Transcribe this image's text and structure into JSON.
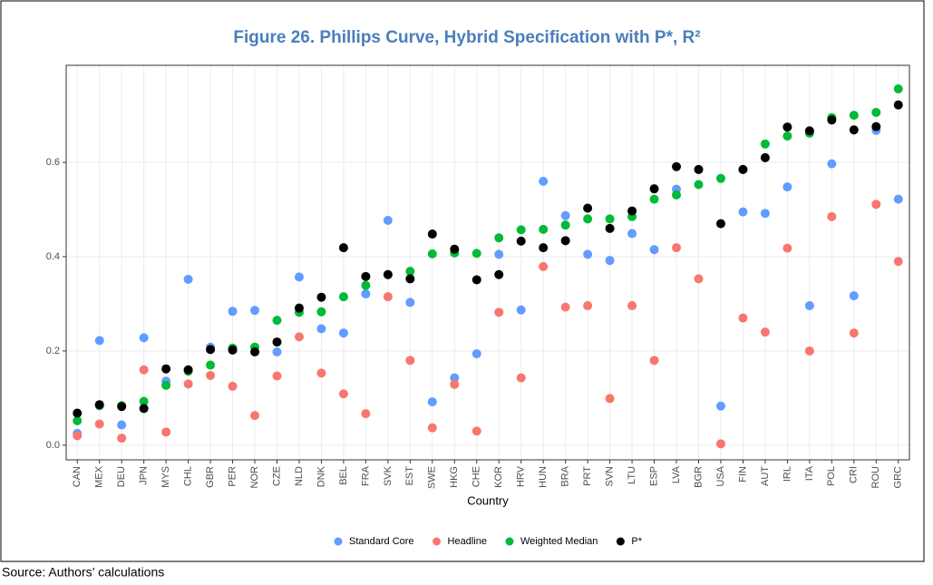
{
  "chart_data": {
    "type": "scatter",
    "title": "Figure 26. Phillips Curve, Hybrid Specification with P*, R²",
    "x_label": "Country",
    "source": "Source: Authors’ calculations",
    "categories": [
      "CAN",
      "MEX",
      "DEU",
      "JPN",
      "MYS",
      "CHL",
      "GBR",
      "PER",
      "NOR",
      "CZE",
      "NLD",
      "DNK",
      "BEL",
      "FRA",
      "SVK",
      "EST",
      "SWE",
      "HKG",
      "CHE",
      "KOR",
      "HRV",
      "HUN",
      "BRA",
      "PRT",
      "SVN",
      "LTU",
      "ESP",
      "LVA",
      "BGR",
      "USA",
      "FIN",
      "AUT",
      "IRL",
      "ITA",
      "POL",
      "CRI",
      "ROU",
      "GRC"
    ],
    "series": [
      {
        "name": "Standard Core",
        "color": "#619cff",
        "values": [
          0.025,
          0.222,
          0.043,
          0.228,
          0.136,
          0.352,
          0.208,
          0.284,
          0.286,
          0.198,
          0.357,
          0.247,
          0.238,
          0.321,
          0.477,
          0.303,
          0.092,
          0.143,
          0.194,
          0.405,
          0.287,
          0.56,
          0.487,
          0.405,
          0.392,
          0.449,
          0.415,
          0.543,
          0.585,
          0.083,
          0.495,
          0.492,
          0.548,
          0.296,
          0.597,
          0.317,
          0.668,
          0.522
        ]
      },
      {
        "name": "Headline",
        "color": "#f8766d",
        "values": [
          0.02,
          0.045,
          0.015,
          0.16,
          0.028,
          0.13,
          0.148,
          0.125,
          0.063,
          0.147,
          0.23,
          0.153,
          0.109,
          0.067,
          0.315,
          0.18,
          0.037,
          0.129,
          0.03,
          0.282,
          0.143,
          0.379,
          0.293,
          0.296,
          0.099,
          0.296,
          0.18,
          0.419,
          0.353,
          0.003,
          0.27,
          0.24,
          0.418,
          0.2,
          0.485,
          0.238,
          0.511,
          0.39
        ]
      },
      {
        "name": "Weighted Median",
        "color": "#00ba38",
        "values": [
          0.052,
          0.084,
          0.084,
          0.093,
          0.127,
          0.157,
          0.17,
          0.206,
          0.208,
          0.265,
          0.282,
          0.283,
          0.315,
          0.339,
          0.362,
          0.369,
          0.406,
          0.408,
          0.407,
          0.44,
          0.457,
          0.458,
          0.467,
          0.48,
          0.48,
          0.485,
          0.522,
          0.531,
          0.553,
          0.566,
          0.585,
          0.639,
          0.656,
          0.662,
          0.695,
          0.7,
          0.706,
          0.756
        ]
      },
      {
        "name": "P*",
        "color": "#000000",
        "values": [
          0.068,
          0.086,
          0.082,
          0.078,
          0.162,
          0.16,
          0.203,
          0.202,
          0.198,
          0.219,
          0.291,
          0.314,
          0.419,
          0.358,
          0.362,
          0.353,
          0.448,
          0.416,
          0.351,
          0.362,
          0.433,
          0.419,
          0.434,
          0.503,
          0.46,
          0.497,
          0.544,
          0.591,
          0.585,
          0.47,
          0.585,
          0.61,
          0.675,
          0.667,
          0.69,
          0.669,
          0.676,
          0.722
        ]
      }
    ],
    "ylim": [
      -0.031,
      0.806
    ],
    "yticks": [
      {
        "value": 0,
        "label": "0.0"
      },
      0.2,
      0.4,
      0.6
    ],
    "grid": true,
    "legend": "bottom"
  }
}
